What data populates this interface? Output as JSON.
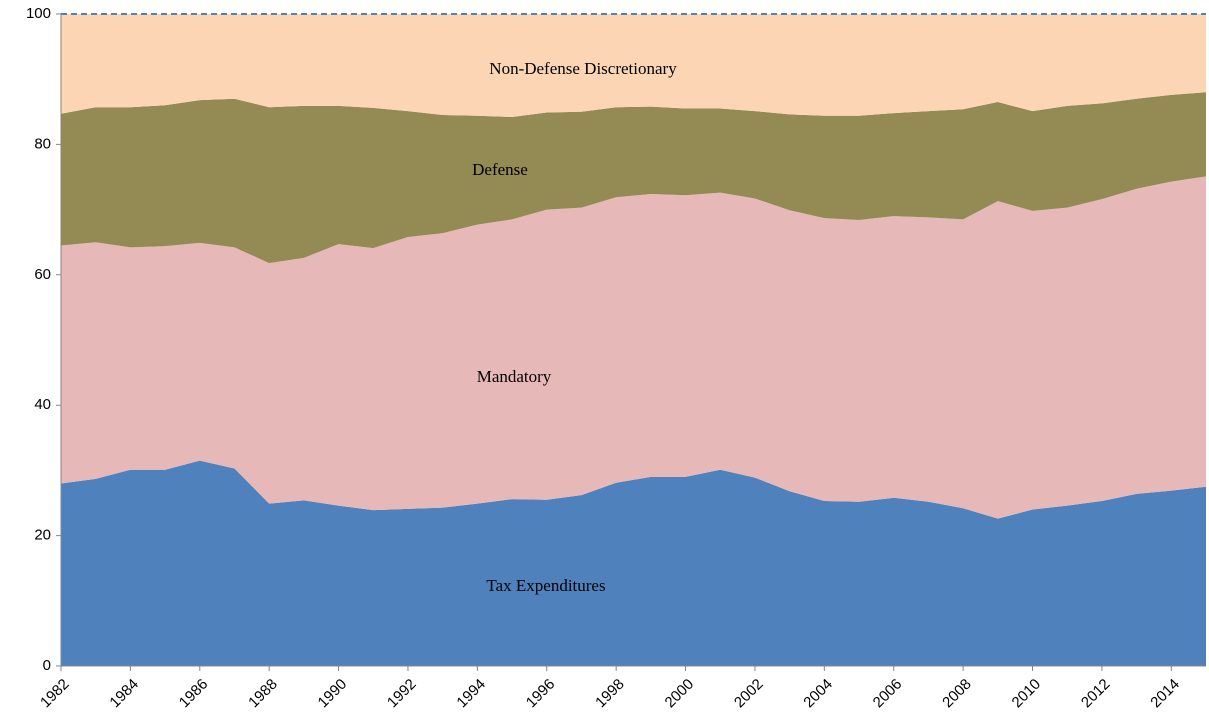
{
  "chart_data": {
    "type": "stacked-area",
    "x": [
      1982,
      1983,
      1984,
      1985,
      1986,
      1987,
      1988,
      1989,
      1990,
      1991,
      1992,
      1993,
      1994,
      1995,
      1996,
      1997,
      1998,
      1999,
      2000,
      2001,
      2002,
      2003,
      2004,
      2005,
      2006,
      2007,
      2008,
      2009,
      2010,
      2011,
      2012,
      2013,
      2014,
      2015
    ],
    "series": [
      {
        "name": "Tax Expenditures",
        "color": "#4f81bd",
        "values": [
          28,
          28.7,
          30.1,
          30.1,
          31.5,
          30.3,
          24.9,
          25.4,
          24.6,
          23.9,
          24.1,
          24.3,
          24.9,
          25.6,
          25.5,
          26.2,
          28.1,
          29,
          29,
          30.1,
          28.9,
          26.8,
          25.3,
          25.2,
          25.8,
          25.2,
          24.2,
          22.6,
          24,
          24.6,
          25.3,
          26.4,
          26.9,
          27.5
        ]
      },
      {
        "name": "Mandatory",
        "color": "#e6b9b8",
        "values": [
          36.5,
          36.3,
          34.1,
          34.3,
          33.4,
          33.9,
          36.9,
          37.2,
          40.1,
          40.2,
          41.7,
          42.1,
          42.8,
          42.9,
          44.5,
          44.1,
          43.8,
          43.4,
          43.2,
          42.5,
          42.8,
          43.1,
          43.4,
          43.2,
          43.2,
          43.6,
          44.3,
          48.7,
          45.8,
          45.7,
          46.3,
          46.8,
          47.4,
          47.6
        ]
      },
      {
        "name": "Defense",
        "color": "#948a54",
        "values": [
          20.2,
          20.7,
          21.5,
          21.6,
          21.9,
          22.8,
          23.9,
          23.3,
          21.2,
          21.5,
          19.3,
          18.1,
          16.7,
          15.7,
          14.9,
          14.7,
          13.8,
          13.4,
          13.3,
          12.9,
          13.4,
          14.7,
          15.7,
          16.0,
          15.8,
          16.3,
          16.9,
          15.2,
          15.3,
          15.6,
          14.7,
          13.8,
          13.3,
          12.9
        ]
      },
      {
        "name": "Non-Defense Discretionary",
        "color": "#fcd5b5",
        "values": [
          15.3,
          14.3,
          14.3,
          14.0,
          13.2,
          13.0,
          14.3,
          14.1,
          14.1,
          14.4,
          14.9,
          15.5,
          15.6,
          15.8,
          15.1,
          15.0,
          14.3,
          14.2,
          14.5,
          14.5,
          14.9,
          15.4,
          15.6,
          15.6,
          15.2,
          14.9,
          14.6,
          13.5,
          14.9,
          14.1,
          13.7,
          13.0,
          12.4,
          12.0
        ]
      }
    ],
    "xlim": [
      1982,
      2015
    ],
    "xticks": [
      1982,
      1984,
      1986,
      1988,
      1990,
      1992,
      1994,
      1996,
      1998,
      2000,
      2002,
      2004,
      2006,
      2008,
      2010,
      2012,
      2014
    ],
    "ylim": [
      0,
      100
    ],
    "yticks": [
      0,
      20,
      40,
      60,
      80,
      100
    ],
    "grid": false
  }
}
